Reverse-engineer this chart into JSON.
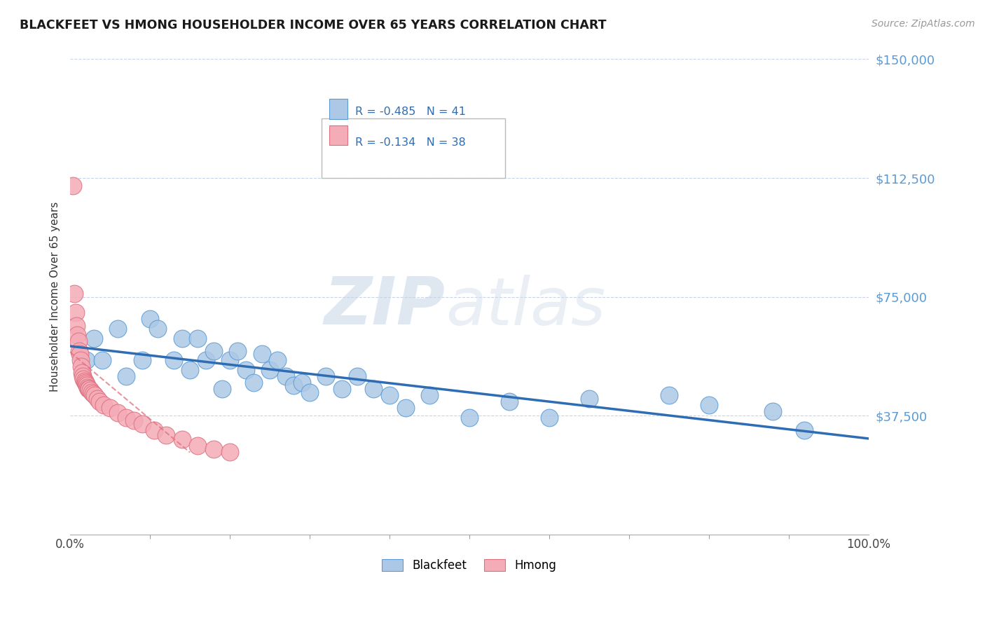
{
  "title": "BLACKFEET VS HMONG HOUSEHOLDER INCOME OVER 65 YEARS CORRELATION CHART",
  "source": "Source: ZipAtlas.com",
  "ylabel": "Householder Income Over 65 years",
  "watermark_zip": "ZIP",
  "watermark_atlas": "atlas",
  "xlim": [
    0,
    100
  ],
  "ylim": [
    0,
    150000
  ],
  "yticks": [
    37500,
    75000,
    112500,
    150000
  ],
  "ytick_labels": [
    "$37,500",
    "$75,000",
    "$112,500",
    "$150,000"
  ],
  "legend_line1": "R = -0.485   N = 41",
  "legend_line2": "R = -0.134   N = 38",
  "blackfeet_color": "#adc8e6",
  "blackfeet_edge": "#5b9bd5",
  "hmong_color": "#f4acb7",
  "hmong_edge": "#e07080",
  "trendline_blue": "#2e6db4",
  "trendline_pink": "#e07080",
  "background_color": "#ffffff",
  "grid_color": "#c8d4e8",
  "ytick_color": "#5b9bd5",
  "blackfeet_x": [
    2,
    3,
    4,
    6,
    7,
    9,
    10,
    11,
    13,
    14,
    15,
    16,
    17,
    18,
    19,
    20,
    21,
    22,
    23,
    24,
    25,
    26,
    27,
    28,
    29,
    30,
    32,
    34,
    36,
    38,
    40,
    42,
    45,
    50,
    55,
    60,
    65,
    75,
    80,
    88,
    92
  ],
  "blackfeet_y": [
    55000,
    62000,
    55000,
    65000,
    50000,
    55000,
    68000,
    65000,
    55000,
    62000,
    52000,
    62000,
    55000,
    58000,
    46000,
    55000,
    58000,
    52000,
    48000,
    57000,
    52000,
    55000,
    50000,
    47000,
    48000,
    45000,
    50000,
    46000,
    50000,
    46000,
    44000,
    40000,
    44000,
    37000,
    42000,
    37000,
    43000,
    44000,
    41000,
    39000,
    33000
  ],
  "hmong_x": [
    0.3,
    0.5,
    0.7,
    0.8,
    0.9,
    1.0,
    1.1,
    1.2,
    1.3,
    1.4,
    1.5,
    1.6,
    1.7,
    1.8,
    1.9,
    2.0,
    2.1,
    2.2,
    2.3,
    2.4,
    2.5,
    2.7,
    2.9,
    3.1,
    3.4,
    3.7,
    4.2,
    5.0,
    6.0,
    7.0,
    8.0,
    9.0,
    10.5,
    12.0,
    14.0,
    16.0,
    18.0,
    20.0
  ],
  "hmong_y": [
    110000,
    76000,
    70000,
    66000,
    63000,
    61000,
    58000,
    57000,
    55000,
    53000,
    51000,
    50000,
    49000,
    48500,
    48000,
    47500,
    47000,
    46500,
    46000,
    46000,
    45500,
    45000,
    44500,
    44000,
    43000,
    42000,
    41000,
    40000,
    38500,
    37000,
    36000,
    35000,
    33000,
    31500,
    30000,
    28000,
    27000,
    26000
  ]
}
